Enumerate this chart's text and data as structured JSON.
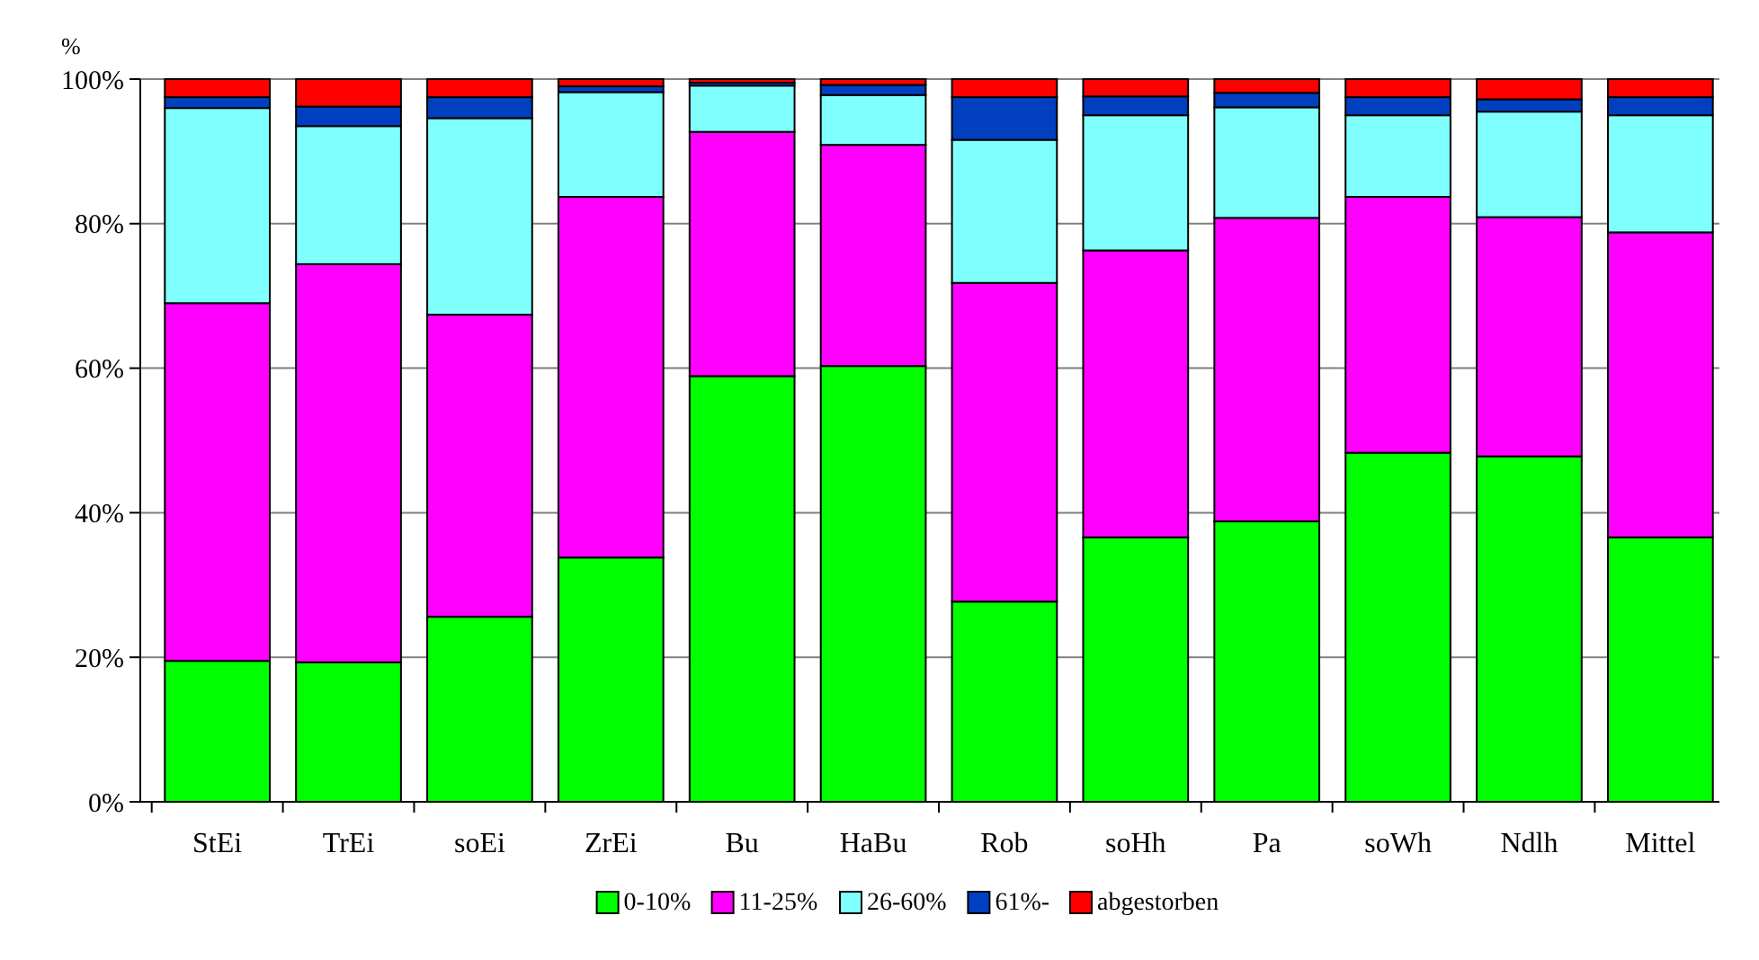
{
  "chart_data": {
    "type": "bar",
    "stacked": true,
    "ylabel": "%",
    "categories": [
      "StEi",
      "TrEi",
      "soEi",
      "ZrEi",
      "Bu",
      "HaBu",
      "Rob",
      "soHh",
      "Pa",
      "soWh",
      "Ndlh",
      "Mittel"
    ],
    "series": [
      {
        "name": "0-10%",
        "color": "#00ff00",
        "values": [
          19.5,
          19.3,
          25.6,
          33.8,
          58.9,
          60.3,
          27.7,
          36.6,
          38.8,
          48.3,
          47.8,
          36.6
        ]
      },
      {
        "name": "11-25%",
        "color": "#ff00ff",
        "values": [
          49.5,
          55.1,
          41.8,
          49.9,
          33.8,
          30.6,
          44.1,
          39.7,
          42,
          35.4,
          33.1,
          42.2
        ]
      },
      {
        "name": "26-60%",
        "color": "#80ffff",
        "values": [
          27,
          19.1,
          27.2,
          14.5,
          6.4,
          6.9,
          19.8,
          18.7,
          15.3,
          11.3,
          14.6,
          16.2
        ]
      },
      {
        "name": "61%-",
        "color": "#0040c0",
        "values": [
          1.5,
          2.7,
          2.9,
          0.8,
          0.4,
          1.4,
          5.9,
          2.6,
          2,
          2.5,
          1.7,
          2.5
        ]
      },
      {
        "name": "abgestorben",
        "color": "#ff0000",
        "values": [
          2.5,
          3.8,
          2.5,
          1,
          0.5,
          0.8,
          2.5,
          2.4,
          1.9,
          2.5,
          2.8,
          2.5
        ]
      }
    ],
    "ylim": [
      0,
      100
    ],
    "yticks": [
      {
        "value": 0,
        "label": "0%"
      },
      {
        "value": 20,
        "label": "20%"
      },
      {
        "value": 40,
        "label": "40%"
      },
      {
        "value": 60,
        "label": "60%"
      },
      {
        "value": 80,
        "label": "80%"
      },
      {
        "value": 100,
        "label": "100%"
      }
    ],
    "grid": "y",
    "legend": "bottom"
  }
}
